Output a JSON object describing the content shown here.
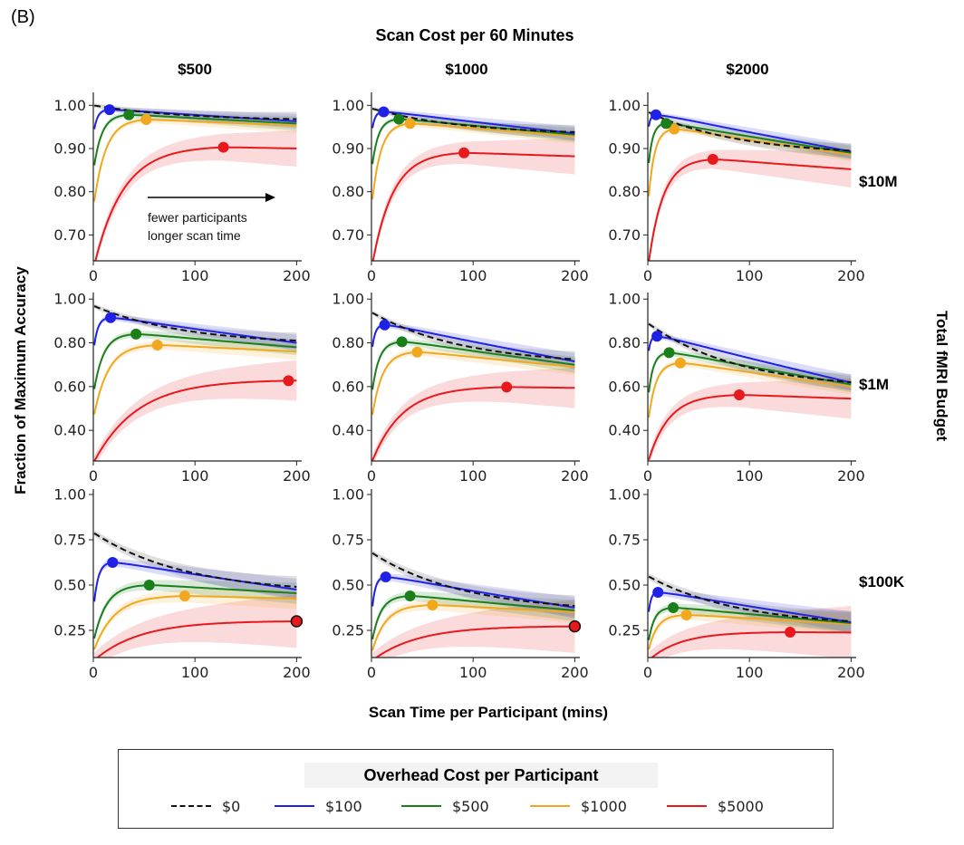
{
  "figure_label": "(B)",
  "title": "Scan Cost per 60 Minutes",
  "xlabel": "Scan Time per Participant (mins)",
  "ylabel": "Fraction of Maximum Accuracy",
  "right_label": "Total fMRI Budget",
  "columns": [
    "$500",
    "$1000",
    "$2000"
  ],
  "rows": [
    "$10M",
    "$1M",
    "$100K"
  ],
  "annotation": {
    "line1": "fewer participants",
    "line2": "longer scan time"
  },
  "legend": {
    "title": "Overhead Cost per Participant",
    "items": [
      {
        "label": "$0",
        "color": "#111111",
        "style": "dashed"
      },
      {
        "label": "$100",
        "color": "#1f22e6",
        "style": "solid"
      },
      {
        "label": "$500",
        "color": "#1a7f1a",
        "style": "solid"
      },
      {
        "label": "$1000",
        "color": "#f2a81e",
        "style": "solid"
      },
      {
        "label": "$5000",
        "color": "#e8191c",
        "style": "solid"
      }
    ]
  },
  "chart_data": {
    "type": "line",
    "xlim": [
      0,
      205
    ],
    "x_ticks": [
      0,
      100,
      200
    ],
    "series_names": [
      "$0",
      "$100",
      "$500",
      "$1000",
      "$5000"
    ],
    "series_colors": [
      "#111111",
      "#1f22e6",
      "#1a7f1a",
      "#f2a81e",
      "#e8191c"
    ],
    "row_ylim": [
      [
        0.64,
        1.03
      ],
      [
        0.26,
        1.03
      ],
      [
        0.1,
        1.03
      ]
    ],
    "row_yticks": [
      [
        "0.70",
        "0.80",
        "0.90",
        "1.00"
      ],
      [
        "0.40",
        "0.60",
        "0.80",
        "1.00"
      ],
      [
        "0.25",
        "0.50",
        "0.75",
        "1.00"
      ]
    ],
    "panels": [
      {
        "row": "$10M",
        "col": "$500",
        "series": [
          {
            "name": "$0",
            "start": 1.0,
            "optimum_x": 0,
            "optimum_y": 1.0,
            "end": 0.968
          },
          {
            "name": "$100",
            "start": 0.93,
            "optimum_x": 16,
            "optimum_y": 0.99,
            "end": 0.963
          },
          {
            "name": "$500",
            "start": 0.845,
            "optimum_x": 35,
            "optimum_y": 0.978,
            "end": 0.958
          },
          {
            "name": "$1000",
            "start": 0.76,
            "optimum_x": 52,
            "optimum_y": 0.967,
            "end": 0.953
          },
          {
            "name": "$5000",
            "start": 0.62,
            "optimum_x": 128,
            "optimum_y": 0.903,
            "end": 0.9
          }
        ]
      },
      {
        "row": "$10M",
        "col": "$1000",
        "series": [
          {
            "name": "$0",
            "start": 0.993,
            "optimum_x": 0,
            "optimum_y": 0.993,
            "end": 0.938
          },
          {
            "name": "$100",
            "start": 0.93,
            "optimum_x": 12,
            "optimum_y": 0.985,
            "end": 0.935
          },
          {
            "name": "$500",
            "start": 0.845,
            "optimum_x": 27,
            "optimum_y": 0.968,
            "end": 0.932
          },
          {
            "name": "$1000",
            "start": 0.76,
            "optimum_x": 38,
            "optimum_y": 0.958,
            "end": 0.928
          },
          {
            "name": "$5000",
            "start": 0.62,
            "optimum_x": 91,
            "optimum_y": 0.89,
            "end": 0.882
          }
        ]
      },
      {
        "row": "$10M",
        "col": "$2000",
        "series": [
          {
            "name": "$0",
            "start": 0.985,
            "optimum_x": 0,
            "optimum_y": 0.985,
            "end": 0.895
          },
          {
            "name": "$100",
            "start": 0.93,
            "optimum_x": 8,
            "optimum_y": 0.978,
            "end": 0.893
          },
          {
            "name": "$500",
            "start": 0.84,
            "optimum_x": 18,
            "optimum_y": 0.958,
            "end": 0.89
          },
          {
            "name": "$1000",
            "start": 0.76,
            "optimum_x": 26,
            "optimum_y": 0.945,
            "end": 0.886
          },
          {
            "name": "$5000",
            "start": 0.62,
            "optimum_x": 64,
            "optimum_y": 0.875,
            "end": 0.852
          }
        ]
      },
      {
        "row": "$1M",
        "col": "$500",
        "series": [
          {
            "name": "$0",
            "start": 0.97,
            "optimum_x": 0,
            "optimum_y": 0.97,
            "end": 0.81
          },
          {
            "name": "$100",
            "start": 0.75,
            "optimum_x": 17,
            "optimum_y": 0.915,
            "end": 0.8
          },
          {
            "name": "$500",
            "start": 0.56,
            "optimum_x": 42,
            "optimum_y": 0.84,
            "end": 0.78
          },
          {
            "name": "$1000",
            "start": 0.45,
            "optimum_x": 63,
            "optimum_y": 0.79,
            "end": 0.76
          },
          {
            "name": "$5000",
            "start": 0.25,
            "optimum_x": 192,
            "optimum_y": 0.627,
            "end": 0.627
          }
        ]
      },
      {
        "row": "$1M",
        "col": "$1000",
        "series": [
          {
            "name": "$0",
            "start": 0.94,
            "optimum_x": 0,
            "optimum_y": 0.94,
            "end": 0.725
          },
          {
            "name": "$100",
            "start": 0.74,
            "optimum_x": 13,
            "optimum_y": 0.882,
            "end": 0.715
          },
          {
            "name": "$500",
            "start": 0.55,
            "optimum_x": 30,
            "optimum_y": 0.805,
            "end": 0.7
          },
          {
            "name": "$1000",
            "start": 0.44,
            "optimum_x": 45,
            "optimum_y": 0.758,
            "end": 0.69
          },
          {
            "name": "$5000",
            "start": 0.25,
            "optimum_x": 133,
            "optimum_y": 0.598,
            "end": 0.594
          }
        ]
      },
      {
        "row": "$1M",
        "col": "$2000",
        "series": [
          {
            "name": "$0",
            "start": 0.89,
            "optimum_x": 0,
            "optimum_y": 0.89,
            "end": 0.62
          },
          {
            "name": "$100",
            "start": 0.72,
            "optimum_x": 9,
            "optimum_y": 0.83,
            "end": 0.618
          },
          {
            "name": "$500",
            "start": 0.53,
            "optimum_x": 21,
            "optimum_y": 0.755,
            "end": 0.61
          },
          {
            "name": "$1000",
            "start": 0.42,
            "optimum_x": 32,
            "optimum_y": 0.708,
            "end": 0.6
          },
          {
            "name": "$5000",
            "start": 0.25,
            "optimum_x": 90,
            "optimum_y": 0.562,
            "end": 0.545
          }
        ]
      },
      {
        "row": "$100K",
        "col": "$500",
        "series": [
          {
            "name": "$0",
            "start": 0.79,
            "optimum_x": 0,
            "optimum_y": 0.79,
            "end": 0.49
          },
          {
            "name": "$100",
            "start": 0.35,
            "optimum_x": 19,
            "optimum_y": 0.625,
            "end": 0.475
          },
          {
            "name": "$500",
            "start": 0.18,
            "optimum_x": 55,
            "optimum_y": 0.5,
            "end": 0.455
          },
          {
            "name": "$1000",
            "start": 0.13,
            "optimum_x": 90,
            "optimum_y": 0.44,
            "end": 0.425
          },
          {
            "name": "$5000",
            "start": 0.08,
            "optimum_x": 200,
            "optimum_y": 0.3,
            "end": 0.3
          }
        ]
      },
      {
        "row": "$100K",
        "col": "$1000",
        "series": [
          {
            "name": "$0",
            "start": 0.68,
            "optimum_x": 0,
            "optimum_y": 0.68,
            "end": 0.385
          },
          {
            "name": "$100",
            "start": 0.32,
            "optimum_x": 14,
            "optimum_y": 0.545,
            "end": 0.375
          },
          {
            "name": "$500",
            "start": 0.17,
            "optimum_x": 38,
            "optimum_y": 0.44,
            "end": 0.36
          },
          {
            "name": "$1000",
            "start": 0.12,
            "optimum_x": 60,
            "optimum_y": 0.39,
            "end": 0.35
          },
          {
            "name": "$5000",
            "start": 0.08,
            "optimum_x": 200,
            "optimum_y": 0.272,
            "end": 0.272
          }
        ]
      },
      {
        "row": "$100K",
        "col": "$2000",
        "series": [
          {
            "name": "$0",
            "start": 0.55,
            "optimum_x": 0,
            "optimum_y": 0.55,
            "end": 0.3
          },
          {
            "name": "$100",
            "start": 0.29,
            "optimum_x": 10,
            "optimum_y": 0.46,
            "end": 0.295
          },
          {
            "name": "$500",
            "start": 0.16,
            "optimum_x": 25,
            "optimum_y": 0.375,
            "end": 0.29
          },
          {
            "name": "$1000",
            "start": 0.12,
            "optimum_x": 38,
            "optimum_y": 0.335,
            "end": 0.285
          },
          {
            "name": "$5000",
            "start": 0.08,
            "optimum_x": 140,
            "optimum_y": 0.24,
            "end": 0.238
          }
        ]
      }
    ]
  }
}
